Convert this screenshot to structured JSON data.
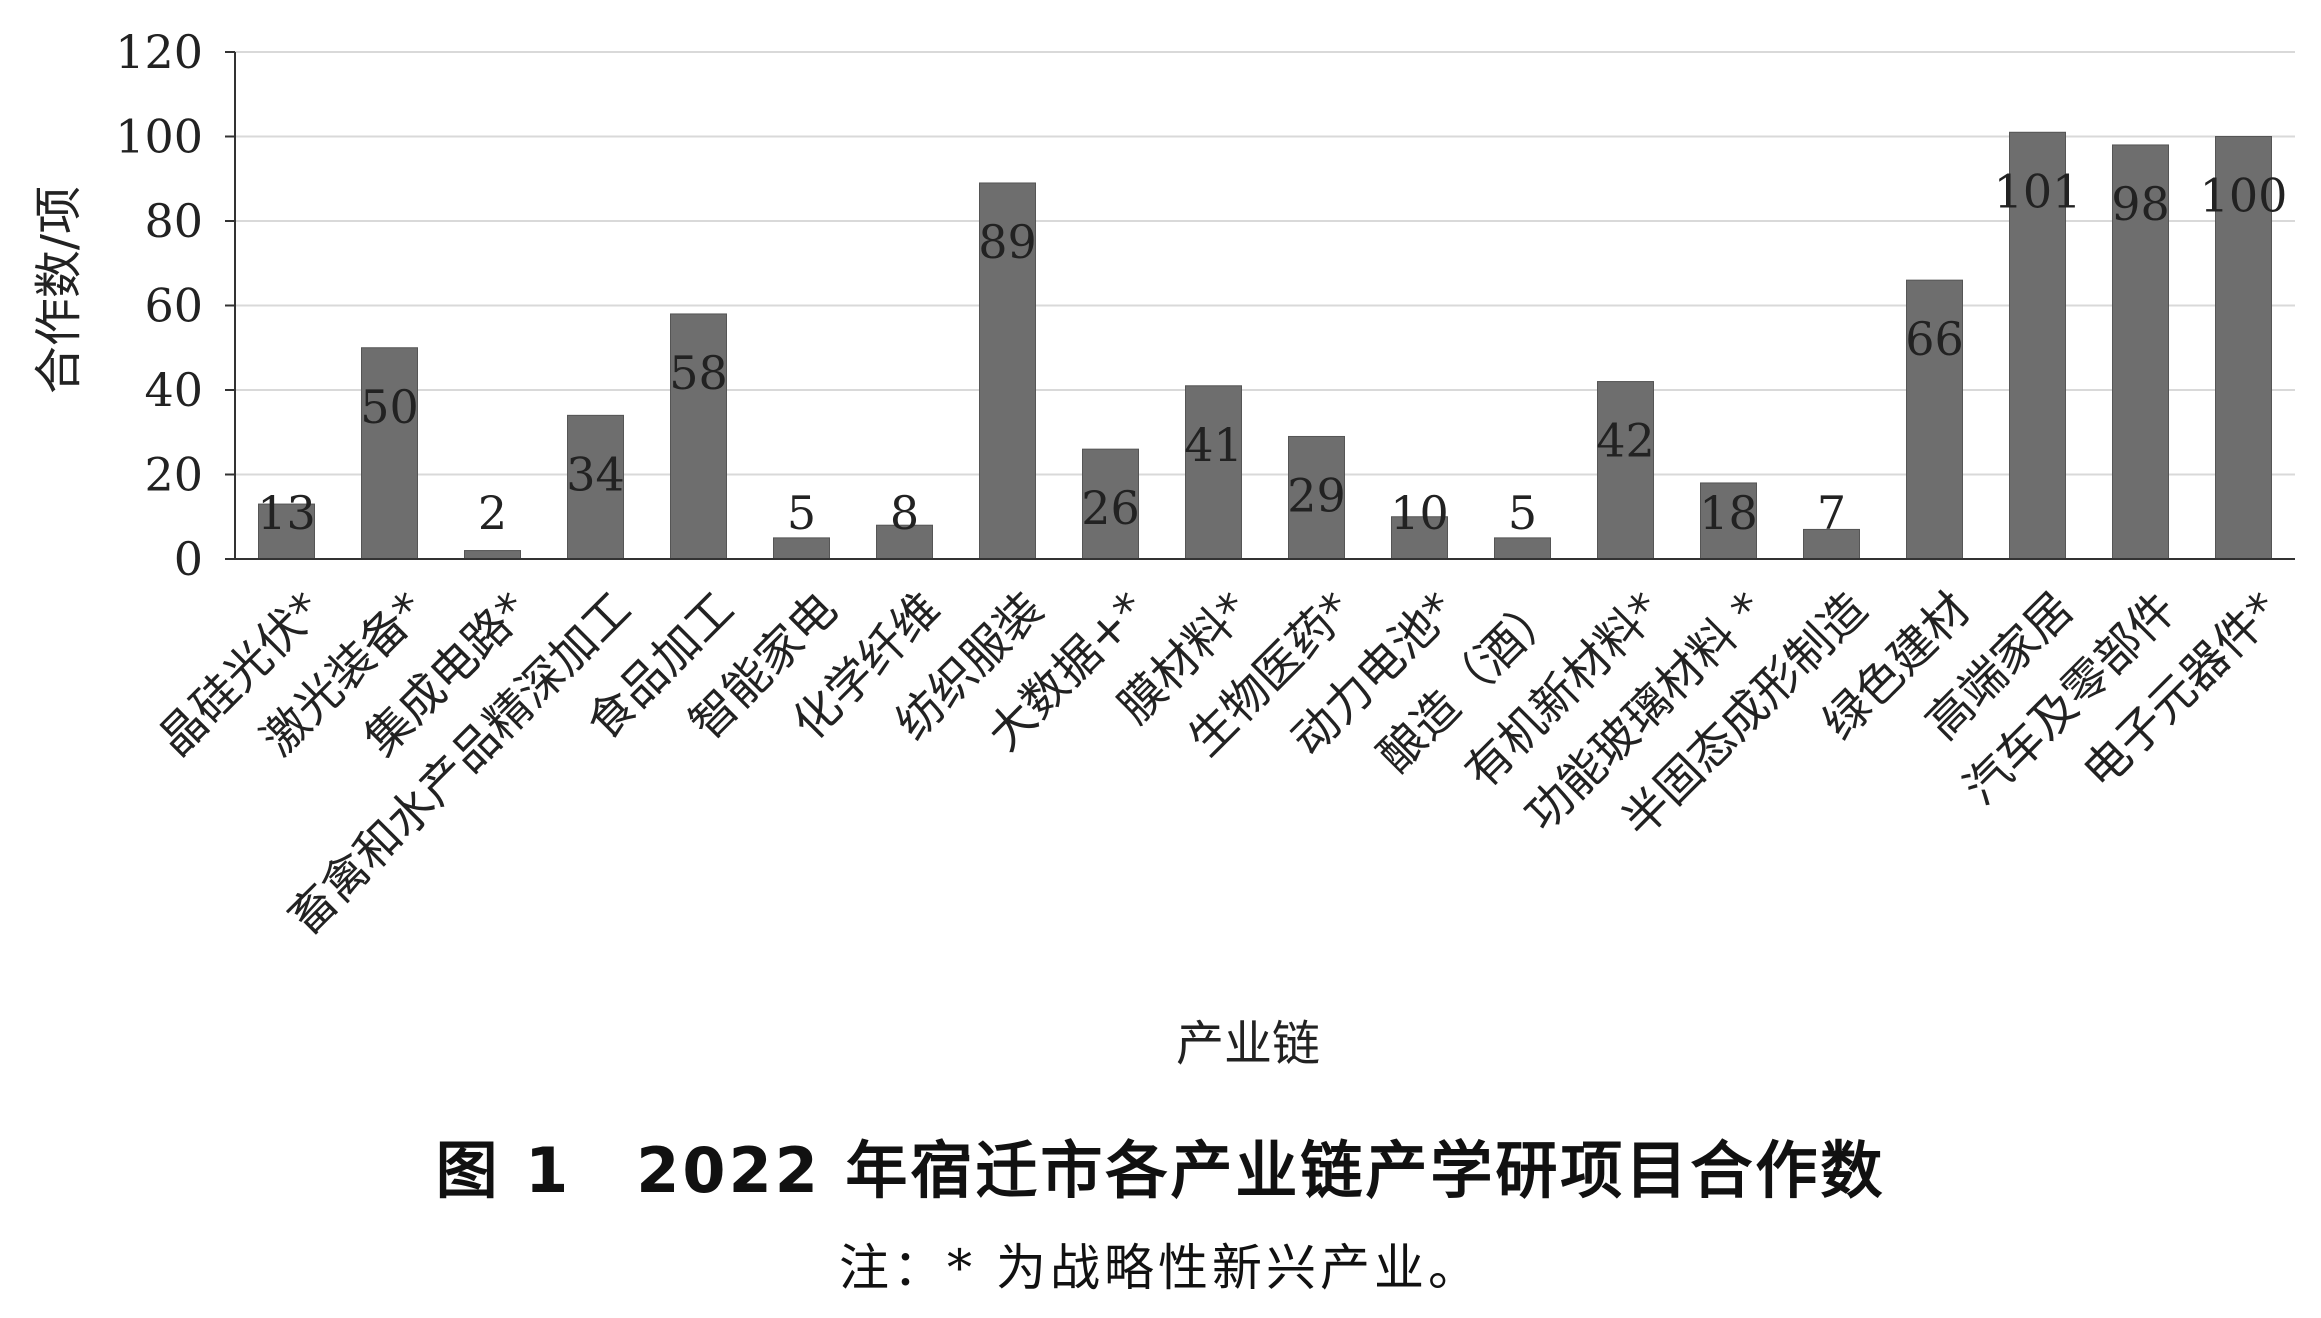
{
  "chart_data": {
    "type": "bar",
    "categories": [
      "晶硅光伏*",
      "激光装备*",
      "集成电路*",
      "畜禽和水产品精深加工",
      "食品加工",
      "智能家电",
      "化学纤维",
      "纺织服装",
      "大数据+*",
      "膜材料*",
      "生物医药*",
      "动力电池*",
      "酿造（酒）",
      "有机新材料*",
      "功能玻璃材料 *",
      "半固态成形制造",
      "绿色建材",
      "高端家居",
      "汽车及零部件",
      "电子元器件*"
    ],
    "values": [
      13,
      50,
      2,
      34,
      58,
      5,
      8,
      89,
      26,
      41,
      29,
      10,
      5,
      42,
      18,
      7,
      66,
      101,
      98,
      100
    ],
    "data_labels": [
      "13",
      "50",
      "2",
      "34",
      "58",
      "5",
      "8",
      "89",
      "26",
      "41",
      "29",
      "10",
      "5",
      "42",
      "18",
      "7",
      "66",
      "101",
      "98",
      "100"
    ],
    "ylabel": "合作数/项",
    "xlabel": "产业链",
    "ylim": [
      0,
      120
    ],
    "yticks": [
      0,
      20,
      40,
      60,
      80,
      100,
      120
    ],
    "grid": true,
    "bar_color": "#6e6e6e",
    "grid_color": "#d9d9d9"
  },
  "caption": {
    "title": "图 1　2022 年宿迁市各产业链产学研项目合作数",
    "note": "注：* 为战略性新兴产业。"
  }
}
